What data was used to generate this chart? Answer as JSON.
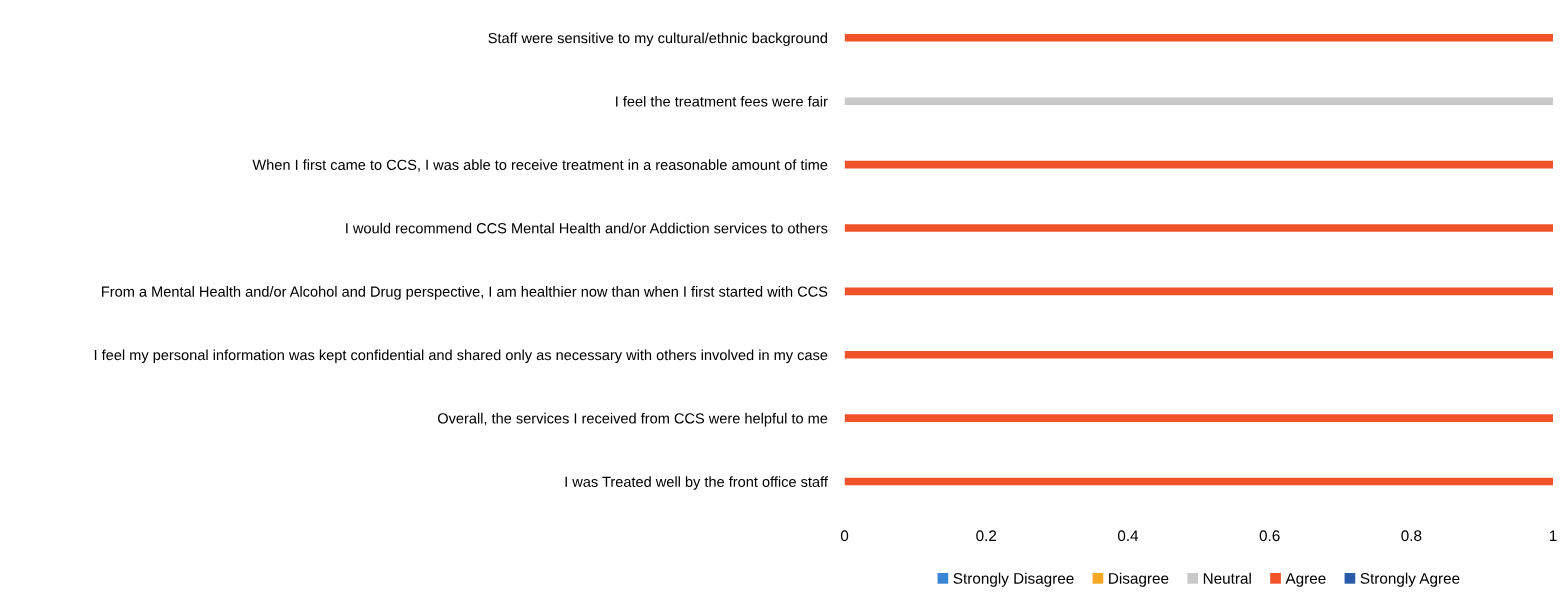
{
  "chart_data": {
    "type": "bar",
    "orientation": "horizontal",
    "stacked": true,
    "categories": [
      "Staff were sensitive to my cultural/ethnic background",
      "I feel the treatment fees were fair",
      "When I first came to CCS, I was able to receive treatment in a reasonable amount of time",
      "I would recommend CCS Mental Health and/or Addiction services to others",
      "From a Mental Health and/or Alcohol and Drug perspective, I am healthier now than when I first started with CCS",
      "I feel my personal information was kept confidential and shared only as necessary with others involved in my case",
      "Overall, the services I received from CCS were helpful to me",
      "I was Treated well by the front office staff"
    ],
    "series": [
      {
        "name": "Strongly Disagree",
        "color": "#3a86d4",
        "values": [
          0,
          0,
          0,
          0,
          0,
          0,
          0,
          0
        ]
      },
      {
        "name": "Disagree",
        "color": "#f9a825",
        "values": [
          0,
          0,
          0,
          0,
          0,
          0,
          0,
          0
        ]
      },
      {
        "name": "Neutral",
        "color": "#c8c8c8",
        "values": [
          0,
          1,
          0,
          0,
          0,
          0,
          0,
          0
        ]
      },
      {
        "name": "Agree",
        "color": "#f0522a",
        "values": [
          1,
          0,
          1,
          1,
          1,
          1,
          1,
          1
        ]
      },
      {
        "name": "Strongly Agree",
        "color": "#2a5caa",
        "values": [
          0,
          0,
          0,
          0,
          0,
          0,
          0,
          0
        ]
      }
    ],
    "xlim": [
      0,
      1
    ],
    "xticks": [
      0,
      0.2,
      0.4,
      0.6,
      0.8,
      1
    ],
    "grid": false,
    "legend": "bottom"
  }
}
